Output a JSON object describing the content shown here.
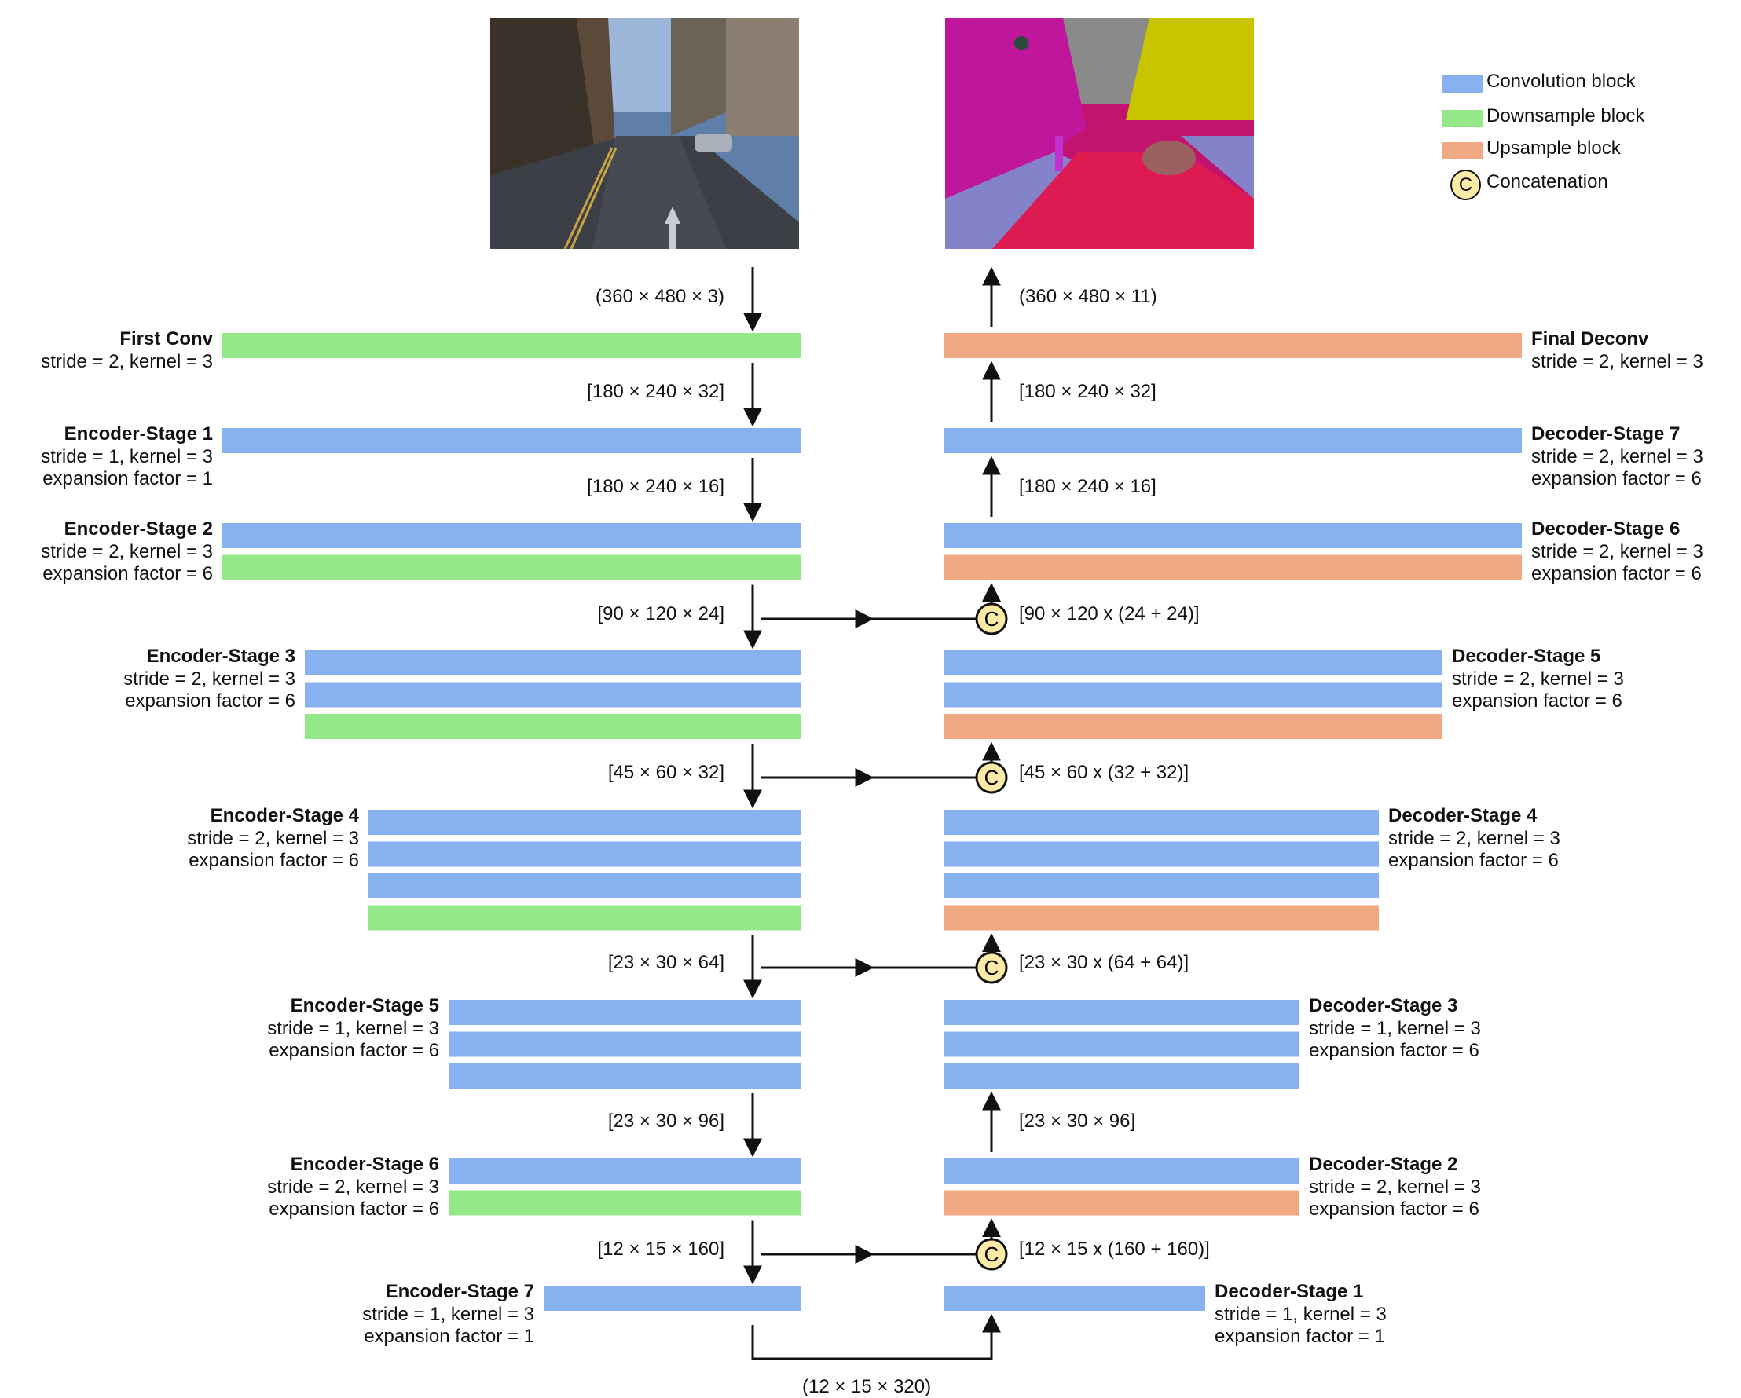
{
  "colors": {
    "convolution": "#88b1f0",
    "downsample": "#95e889",
    "upsample": "#f0a982",
    "concat_fill": "#fbeba7",
    "arrow": "#111111"
  },
  "legend": {
    "convolution": "Convolution block",
    "downsample": "Downsample block",
    "upsample": "Upsample block",
    "concat_letter": "C",
    "concatenation": "Concatenation"
  },
  "images": {
    "input": "street-scene-photo",
    "output": "segmentation-map"
  },
  "encoder": [
    {
      "name": "First Conv",
      "params": [
        "stride = 2, kernel = 3"
      ],
      "blocks": [
        "downsample"
      ]
    },
    {
      "name": "Encoder-Stage 1",
      "params": [
        "stride = 1, kernel = 3",
        "expansion factor = 1"
      ],
      "blocks": [
        "convolution"
      ]
    },
    {
      "name": "Encoder-Stage 2",
      "params": [
        "stride = 2, kernel = 3",
        "expansion factor = 6"
      ],
      "blocks": [
        "convolution",
        "downsample"
      ]
    },
    {
      "name": "Encoder-Stage 3",
      "params": [
        "stride = 2, kernel = 3",
        "expansion factor = 6"
      ],
      "blocks": [
        "convolution",
        "convolution",
        "downsample"
      ]
    },
    {
      "name": "Encoder-Stage 4",
      "params": [
        "stride = 2, kernel = 3",
        "expansion factor = 6"
      ],
      "blocks": [
        "convolution",
        "convolution",
        "convolution",
        "downsample"
      ]
    },
    {
      "name": "Encoder-Stage 5",
      "params": [
        "stride = 1, kernel = 3",
        "expansion factor = 6"
      ],
      "blocks": [
        "convolution",
        "convolution",
        "convolution"
      ]
    },
    {
      "name": "Encoder-Stage 6",
      "params": [
        "stride = 2, kernel = 3",
        "expansion factor = 6"
      ],
      "blocks": [
        "convolution",
        "downsample"
      ]
    },
    {
      "name": "Encoder-Stage 7",
      "params": [
        "stride = 1, kernel = 3",
        "expansion factor = 1"
      ],
      "blocks": [
        "convolution"
      ]
    }
  ],
  "decoder": [
    {
      "name": "Final Deconv",
      "params": [
        "stride = 2, kernel = 3"
      ],
      "blocks": [
        "upsample"
      ]
    },
    {
      "name": "Decoder-Stage 7",
      "params": [
        "stride = 2, kernel = 3",
        "expansion factor = 6"
      ],
      "blocks": [
        "convolution"
      ]
    },
    {
      "name": "Decoder-Stage 6",
      "params": [
        "stride = 2, kernel = 3",
        "expansion factor = 6"
      ],
      "blocks": [
        "convolution",
        "upsample"
      ]
    },
    {
      "name": "Decoder-Stage 5",
      "params": [
        "stride = 2, kernel = 3",
        "expansion factor = 6"
      ],
      "blocks": [
        "convolution",
        "convolution",
        "upsample"
      ]
    },
    {
      "name": "Decoder-Stage 4",
      "params": [
        "stride = 2, kernel = 3",
        "expansion factor = 6"
      ],
      "blocks": [
        "convolution",
        "convolution",
        "convolution",
        "upsample"
      ]
    },
    {
      "name": "Decoder-Stage 3",
      "params": [
        "stride = 1, kernel = 3",
        "expansion factor = 6"
      ],
      "blocks": [
        "convolution",
        "convolution",
        "convolution"
      ]
    },
    {
      "name": "Decoder-Stage 2",
      "params": [
        "stride = 2, kernel = 3",
        "expansion factor = 6"
      ],
      "blocks": [
        "convolution",
        "upsample"
      ]
    },
    {
      "name": "Decoder-Stage 1",
      "params": [
        "stride = 1, kernel = 3",
        "expansion factor = 1"
      ],
      "blocks": [
        "convolution"
      ]
    }
  ],
  "encoder_dims": [
    "(360 × 480 × 3)",
    "[180 × 240 × 32]",
    "[180 × 240 × 16]",
    "[90 × 120 × 24]",
    "[45 × 60 × 32]",
    "[23 × 30 × 64]",
    "[23 × 30 × 96]",
    "[12 × 15 × 160]"
  ],
  "decoder_dims": [
    "(360 × 480 × 11)",
    "[180 × 240 × 32]",
    "[180 × 240 × 16]",
    "[90 × 120 x (24 + 24)]",
    "[45 × 60 x (32 + 32)]",
    "[23 × 30 x (64 + 64)]",
    "[23 × 30 × 96]",
    "[12 × 15 x (160 + 160)]"
  ],
  "bottleneck_dim": "(12 × 15 × 320)"
}
